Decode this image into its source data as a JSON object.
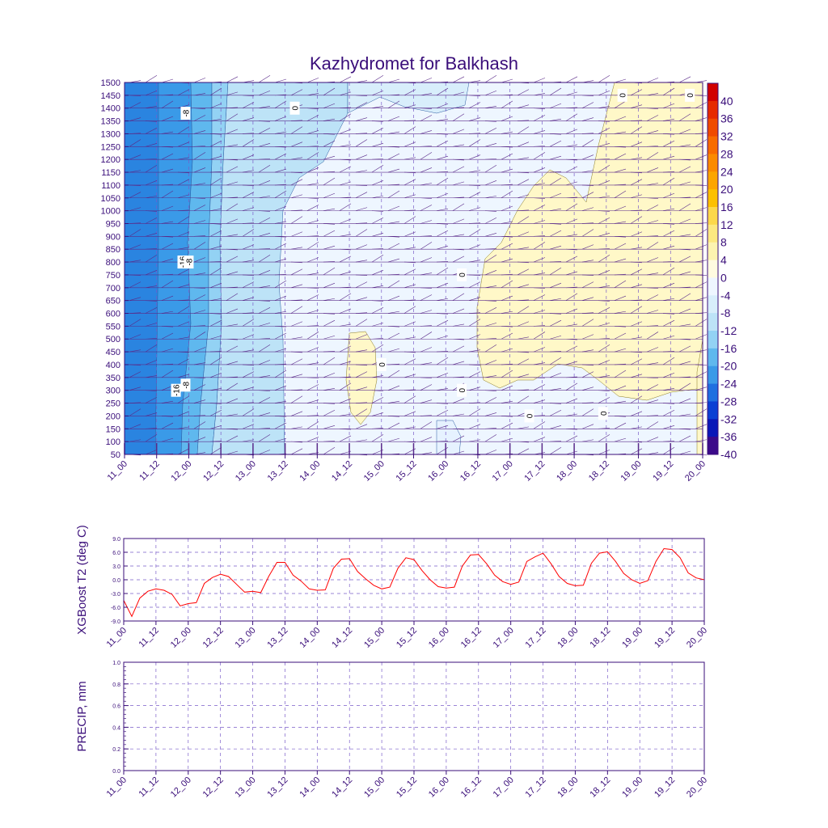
{
  "title": "Kazhydromet for Balkhash",
  "colors": {
    "axis": "#3a0e7a",
    "grid": "#7a5cc8",
    "line": "#ff0000",
    "barb": "#5a2a8a"
  },
  "chart_data": [
    {
      "type": "heatmap",
      "name": "cross-section",
      "x_ticks": [
        "11_00",
        "11_12",
        "12_00",
        "12_12",
        "13_00",
        "13_12",
        "14_00",
        "14_12",
        "15_00",
        "15_12",
        "16_00",
        "16_12",
        "17_00",
        "17_12",
        "18_00",
        "18_12",
        "19_00",
        "19_12",
        "20_00"
      ],
      "y_ticks": [
        50,
        100,
        150,
        200,
        250,
        300,
        350,
        400,
        450,
        500,
        550,
        600,
        650,
        700,
        750,
        800,
        850,
        900,
        950,
        1000,
        1050,
        1100,
        1150,
        1200,
        1250,
        1300,
        1350,
        1400,
        1450,
        1500
      ],
      "ylim": [
        50,
        1500
      ],
      "colorbar": {
        "labels": [
          40,
          36,
          32,
          28,
          24,
          20,
          16,
          12,
          8,
          4,
          0,
          -4,
          -8,
          -12,
          -16,
          -20,
          -24,
          -28,
          -32,
          -36,
          -40
        ],
        "colors": [
          "#d10000",
          "#e62a00",
          "#f04a00",
          "#f86b00",
          "#fb8a00",
          "#fca500",
          "#fdc000",
          "#fdd84a",
          "#fde880",
          "#fdf3b0",
          "#fffbe0",
          "#eef6ff",
          "#d8eefb",
          "#bde3f7",
          "#93d2f4",
          "#5fb8ee",
          "#3a9ae8",
          "#1f6fe0",
          "#0b3fd4",
          "#0a17b8",
          "#3b0a8a"
        ]
      },
      "contour_labels": [
        {
          "text": "-8",
          "x": 1.9,
          "y": 1380
        },
        {
          "text": "-16",
          "x": 1.8,
          "y": 800
        },
        {
          "text": "-8",
          "x": 2.0,
          "y": 800
        },
        {
          "text": "-16",
          "x": 1.6,
          "y": 300
        },
        {
          "text": "-8",
          "x": 1.9,
          "y": 320
        },
        {
          "text": "0",
          "x": 5.3,
          "y": 1400
        },
        {
          "text": "0",
          "x": 10.5,
          "y": 750
        },
        {
          "text": "0",
          "x": 8.0,
          "y": 400
        },
        {
          "text": "0",
          "x": 10.5,
          "y": 300
        },
        {
          "text": "0",
          "x": 12.6,
          "y": 200
        },
        {
          "text": "0",
          "x": 14.9,
          "y": 210
        },
        {
          "text": "0",
          "x": 17.6,
          "y": 1450
        },
        {
          "text": "0",
          "x": 15.5,
          "y": 1450
        }
      ]
    },
    {
      "type": "line",
      "name": "t2",
      "ylabel": "XGBoost T2 (deg C)",
      "ylim": [
        -9,
        9
      ],
      "y_ticks": [
        "9.0",
        "6.0",
        "3.0",
        "0.0",
        "-3.0",
        "-6.0",
        "-9.0"
      ],
      "x_ticks": [
        "11_00",
        "11_12",
        "12_00",
        "12_12",
        "13_00",
        "13_12",
        "14_00",
        "14_12",
        "15_00",
        "15_12",
        "16_00",
        "16_12",
        "17_00",
        "17_12",
        "18_00",
        "18_12",
        "19_00",
        "19_12",
        "20_00"
      ],
      "values": [
        -4.5,
        -8.0,
        -4.0,
        -2.5,
        -2.0,
        -2.3,
        -3.2,
        -5.7,
        -5.2,
        -5.0,
        -0.8,
        0.5,
        1.2,
        0.7,
        -1.0,
        -2.7,
        -2.5,
        -2.8,
        0.8,
        3.8,
        3.8,
        1.0,
        -0.3,
        -2.0,
        -2.3,
        -2.2,
        2.5,
        4.5,
        4.6,
        1.8,
        0.2,
        -1.2,
        -2.0,
        -1.6,
        2.5,
        4.8,
        4.4,
        2.0,
        0.0,
        -1.5,
        -1.8,
        -1.6,
        3.0,
        5.4,
        5.5,
        3.5,
        1.0,
        -0.4,
        -1.0,
        -0.5,
        4.0,
        5.0,
        5.8,
        3.5,
        0.7,
        -0.8,
        -1.3,
        -1.2,
        3.6,
        5.8,
        6.1,
        4.0,
        1.4,
        0.0,
        -0.8,
        -0.2,
        4.0,
        6.8,
        6.6,
        4.8,
        1.5,
        0.4,
        0.0
      ]
    },
    {
      "type": "line",
      "name": "precip",
      "ylabel": "PRECIP, mm",
      "ylim": [
        0.0,
        1.0
      ],
      "y_ticks": [
        "1.0",
        "0.8",
        "0.6",
        "0.4",
        "0.2",
        "0.0"
      ],
      "x_ticks": [
        "11_00",
        "11_12",
        "12_00",
        "12_12",
        "13_00",
        "13_12",
        "14_00",
        "14_12",
        "15_00",
        "15_12",
        "16_00",
        "16_12",
        "17_00",
        "17_12",
        "18_00",
        "18_12",
        "19_00",
        "19_12",
        "20_00"
      ],
      "values": []
    }
  ]
}
